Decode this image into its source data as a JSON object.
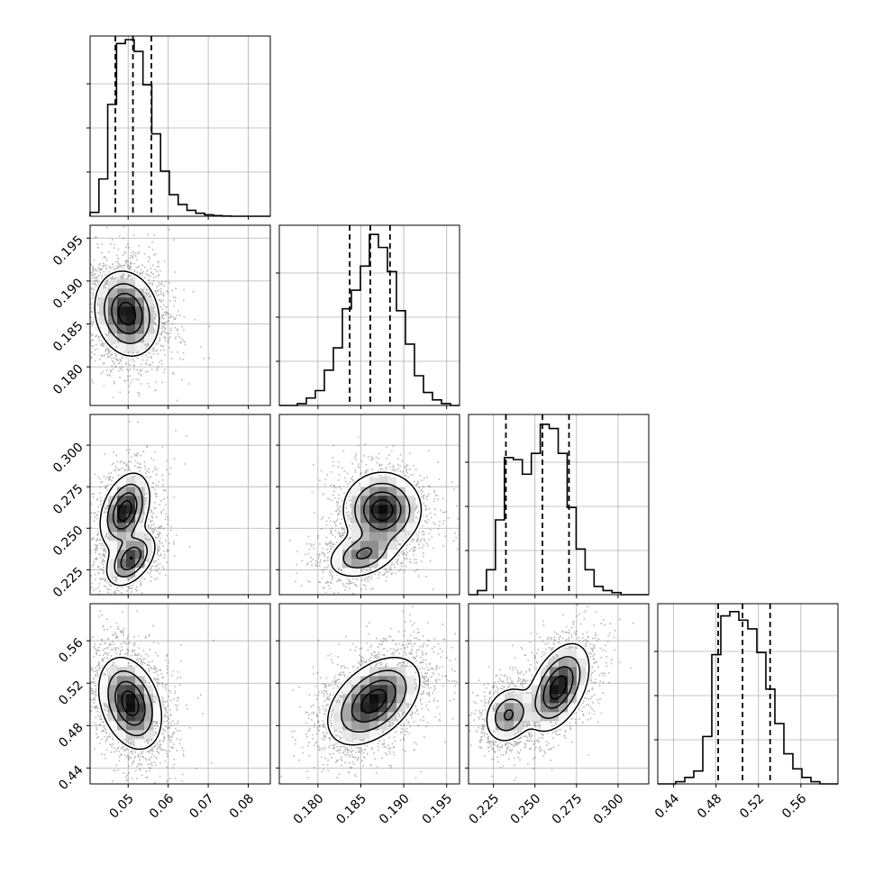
{
  "chart_data": {
    "type": "corner",
    "parameters": [
      {
        "range": [
          0.0405,
          0.0855
        ],
        "ticks": [
          0.05,
          0.06,
          0.07,
          0.08
        ],
        "tick_labels": [
          "0.05",
          "0.06",
          "0.07",
          "0.08"
        ],
        "quantiles": [
          0.0468,
          0.0512,
          0.0558
        ],
        "histogram": {
          "bin_edges": [
            0.0405,
            0.0427,
            0.0449,
            0.0471,
            0.0493,
            0.0515,
            0.0537,
            0.0559,
            0.0581,
            0.0603,
            0.0625,
            0.0647,
            0.0669,
            0.0691,
            0.0713,
            0.0735,
            0.0757,
            0.0779,
            0.0801,
            0.0823,
            0.0855
          ],
          "counts": [
            0.02,
            0.19,
            0.57,
            0.88,
            0.9,
            0.84,
            0.67,
            0.42,
            0.23,
            0.11,
            0.06,
            0.03,
            0.015,
            0.007,
            0.003,
            0.001,
            0.0,
            0.0,
            0.0,
            0.0
          ],
          "ylim": [
            0,
            0.9
          ]
        }
      },
      {
        "range": [
          0.1755,
          0.1965
        ],
        "ticks": [
          0.18,
          0.185,
          0.19,
          0.195
        ],
        "tick_labels": [
          "0.180",
          "0.185",
          "0.190",
          "0.195"
        ],
        "quantiles": [
          0.1837,
          0.1861,
          0.1884
        ],
        "histogram": {
          "bin_edges": [
            0.1755,
            0.17655,
            0.1776,
            0.17865,
            0.1797,
            0.18075,
            0.1818,
            0.18285,
            0.1839,
            0.18495,
            0.186,
            0.18705,
            0.1881,
            0.18915,
            0.1902,
            0.19125,
            0.1923,
            0.19335,
            0.1944,
            0.19545,
            0.1965
          ],
          "counts": [
            0.0,
            0.0,
            0.01,
            0.04,
            0.08,
            0.19,
            0.31,
            0.52,
            0.62,
            0.75,
            0.92,
            0.85,
            0.72,
            0.51,
            0.33,
            0.16,
            0.07,
            0.03,
            0.01,
            0.0
          ],
          "ylim": [
            0,
            0.95
          ]
        }
      },
      {
        "range": [
          0.21,
          0.3185
        ],
        "ticks": [
          0.225,
          0.25,
          0.275,
          0.3
        ],
        "tick_labels": [
          "0.225",
          "0.250",
          "0.275",
          "0.300"
        ],
        "quantiles": [
          0.2325,
          0.2545,
          0.2705
        ],
        "histogram": {
          "bin_edges": [
            0.21,
            0.2154,
            0.2208,
            0.2262,
            0.2316,
            0.237,
            0.2424,
            0.2478,
            0.2532,
            0.2586,
            0.264,
            0.2694,
            0.2748,
            0.2802,
            0.2856,
            0.291,
            0.2964,
            0.3018,
            0.3072,
            0.3126,
            0.3185
          ],
          "counts": [
            0.0,
            0.02,
            0.12,
            0.36,
            0.66,
            0.65,
            0.58,
            0.68,
            0.82,
            0.8,
            0.68,
            0.42,
            0.22,
            0.12,
            0.04,
            0.02,
            0.01,
            0.0,
            0.0,
            0.0
          ],
          "ylim": [
            0,
            0.85
          ]
        }
      },
      {
        "range": [
          0.425,
          0.595
        ],
        "ticks": [
          0.44,
          0.48,
          0.52,
          0.56
        ],
        "tick_labels": [
          "0.44",
          "0.48",
          "0.52",
          "0.56"
        ],
        "quantiles": [
          0.482,
          0.505,
          0.531
        ],
        "histogram": {
          "bin_edges": [
            0.425,
            0.4335,
            0.442,
            0.4505,
            0.459,
            0.4675,
            0.476,
            0.4845,
            0.493,
            0.5015,
            0.51,
            0.5185,
            0.527,
            0.5355,
            0.544,
            0.5525,
            0.561,
            0.5695,
            0.578,
            0.5865,
            0.595
          ],
          "counts": [
            0.0,
            0.0,
            0.01,
            0.03,
            0.06,
            0.22,
            0.6,
            0.78,
            0.8,
            0.76,
            0.72,
            0.61,
            0.44,
            0.28,
            0.14,
            0.07,
            0.03,
            0.01,
            0.0,
            0.0
          ],
          "ylim": [
            0,
            0.82
          ]
        }
      }
    ],
    "correlations": [
      {
        "x": 0,
        "y": 1,
        "modes": [
          {
            "center": [
              0.0497,
              0.1862
            ],
            "sd": [
              0.0039,
              0.0024
            ],
            "rho": -0.15,
            "weight": 1.0
          }
        ]
      },
      {
        "x": 0,
        "y": 2,
        "modes": [
          {
            "center": [
              0.0492,
              0.2605
            ],
            "sd": [
              0.003,
              0.011
            ],
            "rho": 0.35,
            "weight": 0.55
          },
          {
            "center": [
              0.0507,
              0.2315
            ],
            "sd": [
              0.003,
              0.008
            ],
            "rho": 0.45,
            "weight": 0.45
          }
        ]
      },
      {
        "x": 1,
        "y": 2,
        "modes": [
          {
            "center": [
              0.1875,
              0.261
            ],
            "sd": [
              0.0022,
              0.011
            ],
            "rho": 0.0,
            "weight": 0.62
          },
          {
            "center": [
              0.1852,
              0.234
            ],
            "sd": [
              0.002,
              0.007
            ],
            "rho": 0.3,
            "weight": 0.38
          }
        ]
      },
      {
        "x": 0,
        "y": 3,
        "modes": [
          {
            "center": [
              0.0505,
              0.501
            ],
            "sd": [
              0.0038,
              0.021
            ],
            "rho": -0.3,
            "weight": 1.0
          }
        ]
      },
      {
        "x": 1,
        "y": 3,
        "modes": [
          {
            "center": [
              0.1865,
              0.503
            ],
            "sd": [
              0.0026,
              0.02
            ],
            "rho": 0.45,
            "weight": 1.0
          }
        ]
      },
      {
        "x": 2,
        "y": 3,
        "modes": [
          {
            "center": [
              0.234,
              0.49
            ],
            "sd": [
              0.007,
              0.013
            ],
            "rho": 0.2,
            "weight": 0.42
          },
          {
            "center": [
              0.264,
              0.516
            ],
            "sd": [
              0.009,
              0.02
            ],
            "rho": 0.45,
            "weight": 0.58
          }
        ]
      }
    ],
    "grid": true,
    "legend": "none"
  }
}
